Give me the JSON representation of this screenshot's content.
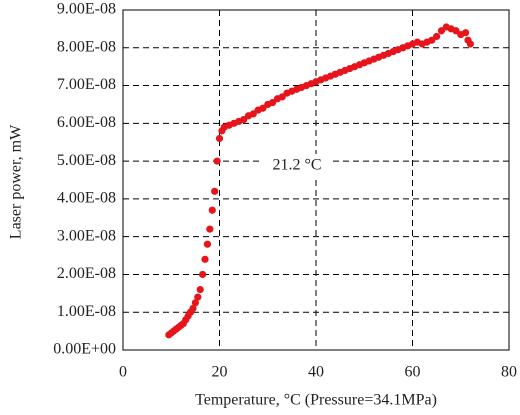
{
  "chart_data": {
    "type": "scatter",
    "xlabel": "Temperature, °C (Pressure=34.1MPa)",
    "ylabel": "Laser power, mW",
    "annotation": "21.2 °C",
    "color": "#e8141b",
    "grid": true,
    "xlim": [
      0,
      80
    ],
    "xticks": [
      0,
      20,
      40,
      60,
      80
    ],
    "ylim": [
      0,
      9e-08
    ],
    "yticks": [
      {
        "value": 0,
        "label": "0.00E+00"
      },
      {
        "value": 1e-08,
        "label": "1.00E-08"
      },
      {
        "value": 2e-08,
        "label": "2.00E-08"
      },
      {
        "value": 3e-08,
        "label": "3.00E-08"
      },
      {
        "value": 4e-08,
        "label": "4.00E-08"
      },
      {
        "value": 5e-08,
        "label": "5.00E-08"
      },
      {
        "value": 6e-08,
        "label": "6.00E-08"
      },
      {
        "value": 7e-08,
        "label": "7.00E-08"
      },
      {
        "value": 8e-08,
        "label": "8.00E-08"
      },
      {
        "value": 9e-08,
        "label": "9.00E-08"
      }
    ],
    "x": [
      9.5,
      10,
      10.5,
      11,
      11.5,
      12,
      12.5,
      13,
      13.5,
      14,
      14.5,
      15,
      15.5,
      16,
      16.5,
      17,
      17.5,
      18,
      18.5,
      19,
      19.5,
      20,
      20.5,
      21,
      22,
      23,
      24,
      25,
      26,
      27,
      28,
      29,
      30,
      31,
      32,
      33,
      34,
      35,
      36,
      37,
      38,
      39,
      40,
      41,
      42,
      43,
      44,
      45,
      46,
      47,
      48,
      49,
      50,
      51,
      52,
      53,
      54,
      55,
      56,
      57,
      58,
      59,
      60,
      61,
      62,
      63,
      64,
      65,
      66,
      67,
      68,
      69,
      70,
      71,
      71.5,
      72
    ],
    "values": [
      4e-09,
      4.5e-09,
      5e-09,
      5.5e-09,
      6e-09,
      6.5e-09,
      7e-09,
      8e-09,
      9e-09,
      1e-08,
      1.1e-08,
      1.25e-08,
      1.4e-08,
      1.6e-08,
      2e-08,
      2.4e-08,
      2.8e-08,
      3.2e-08,
      3.7e-08,
      4.2e-08,
      5e-08,
      5.6e-08,
      5.8e-08,
      5.9e-08,
      5.95e-08,
      6e-08,
      6.05e-08,
      6.1e-08,
      6.2e-08,
      6.25e-08,
      6.35e-08,
      6.4e-08,
      6.5e-08,
      6.55e-08,
      6.65e-08,
      6.7e-08,
      6.8e-08,
      6.85e-08,
      6.9e-08,
      6.95e-08,
      7e-08,
      7.05e-08,
      7.1e-08,
      7.15e-08,
      7.2e-08,
      7.25e-08,
      7.3e-08,
      7.35e-08,
      7.4e-08,
      7.45e-08,
      7.5e-08,
      7.55e-08,
      7.6e-08,
      7.65e-08,
      7.7e-08,
      7.75e-08,
      7.8e-08,
      7.85e-08,
      7.9e-08,
      7.95e-08,
      8e-08,
      8.05e-08,
      8.1e-08,
      8.15e-08,
      8.1e-08,
      8.15e-08,
      8.2e-08,
      8.3e-08,
      8.45e-08,
      8.55e-08,
      8.5e-08,
      8.45e-08,
      8.35e-08,
      8.4e-08,
      8.2e-08,
      8.1e-08
    ]
  }
}
